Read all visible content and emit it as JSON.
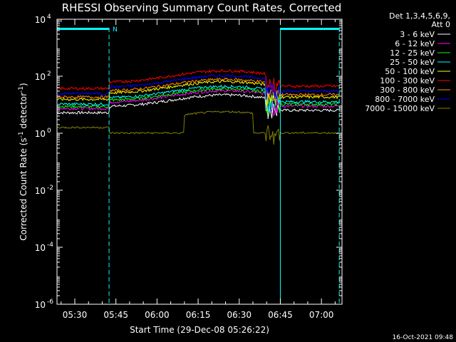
{
  "chart_data": {
    "type": "line",
    "title": "RHESSI Observing Summary Count Rates, Corrected",
    "xlabel": "Start Time (29-Dec-08 05:26:22)",
    "ylabel_main": "Corrected Count Rate (s",
    "ylabel_sup": "-1",
    "ylabel_mid": " detector",
    "ylabel_end": ")",
    "footer": "16-Oct-2021 09:48",
    "detector_lines": [
      "Det 1,3,4,5,6,9,",
      "Att 0"
    ],
    "y_scale": "log",
    "ylim": [
      1e-06,
      10000.0
    ],
    "y_tick_labels": [
      {
        "base": "10",
        "exp": "4",
        "value": 10000.0
      },
      {
        "base": "10",
        "exp": "2",
        "value": 100.0
      },
      {
        "base": "10",
        "exp": "0",
        "value": 1.0
      },
      {
        "base": "10",
        "exp": "-2",
        "value": 0.01
      },
      {
        "base": "10",
        "exp": "-4",
        "value": 0.0001
      },
      {
        "base": "10",
        "exp": "-6",
        "value": 1e-06
      }
    ],
    "xlim_minutes": [
      5.7,
      7.2
    ],
    "x_ticks": [
      {
        "label": "05:30",
        "min": 330
      },
      {
        "label": "05:45",
        "min": 345
      },
      {
        "label": "06:00",
        "min": 360
      },
      {
        "label": "06:15",
        "min": 375
      },
      {
        "label": "06:30",
        "min": 390
      },
      {
        "label": "06:45",
        "min": 405
      },
      {
        "label": "07:00",
        "min": 420
      }
    ],
    "x_range_min": [
      323.5,
      427.5
    ],
    "status_bars": [
      {
        "label": "N",
        "x_start": 323.5,
        "x_end": 342.5,
        "color": "#00ffff"
      },
      {
        "label": "",
        "x_start": 405,
        "x_end": 426.5,
        "color": "#00ffff"
      }
    ],
    "night_boundaries_min": [
      323.5,
      342.5,
      405,
      426.5
    ],
    "series": [
      {
        "name": "3 - 6 keV",
        "color": "#ffffff",
        "level": 8.5
      },
      {
        "name": "6 - 12 keV",
        "color": "#ff00ff",
        "level": 12
      },
      {
        "name": "12 - 25 keV",
        "color": "#00ff00",
        "level": 14
      },
      {
        "name": "25 - 50 keV",
        "color": "#00ffff",
        "level": 17
      },
      {
        "name": "50 - 100 keV",
        "color": "#ffff00",
        "level": 25
      },
      {
        "name": "100 - 300 keV",
        "color": "#ff0000",
        "level": 60
      },
      {
        "name": "300 - 800 keV",
        "color": "#ff8c00",
        "level": 30
      },
      {
        "name": "800 - 7000 keV",
        "color": "#0000ff",
        "level": 40
      },
      {
        "name": "7000 - 15000 keV",
        "color": "#808000",
        "level": 1.2
      }
    ]
  }
}
